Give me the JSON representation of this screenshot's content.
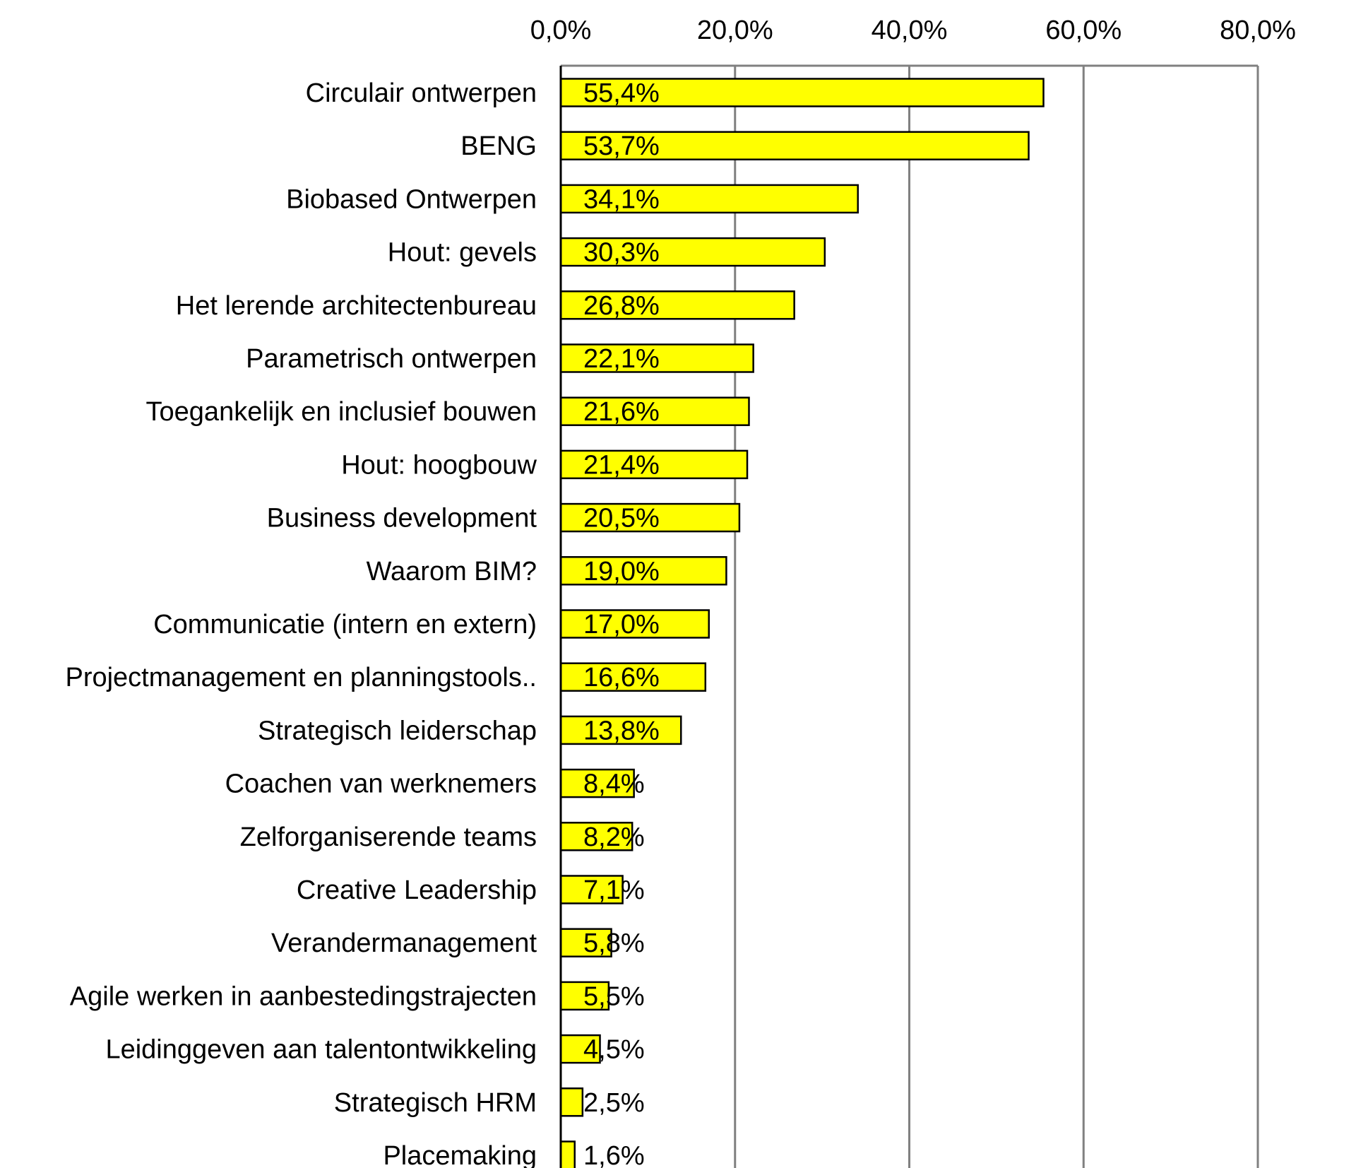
{
  "chart_data": {
    "type": "bar",
    "orientation": "horizontal",
    "title": "",
    "xlabel": "",
    "ylabel": "",
    "xlim": [
      0,
      80
    ],
    "x_ticks": [
      0,
      20,
      40,
      60,
      80
    ],
    "x_tick_labels": [
      "0,0%",
      "20,0%",
      "40,0%",
      "60,0%",
      "80,0%"
    ],
    "x_axis_position": "top",
    "grid": true,
    "legend": "none",
    "bar_color": "#FFFF00",
    "bar_edge_color": "#000000",
    "categories": [
      "Circulair ontwerpen",
      "BENG",
      "Biobased Ontwerpen",
      "Hout: gevels",
      "Het lerende architectenbureau",
      "Parametrisch ontwerpen",
      "Toegankelijk en inclusief bouwen",
      "Hout: hoogbouw",
      "Business development",
      "Waarom BIM?",
      "Communicatie (intern en extern)",
      "Projectmanagement en planningstools..",
      "Strategisch leiderschap",
      "Coachen van werknemers",
      "Zelforganiserende teams",
      "Creative Leadership",
      "Verandermanagement",
      "Agile werken in aanbestedingstrajecten",
      "Leidinggeven aan talentontwikkeling",
      "Strategisch HRM",
      "Placemaking"
    ],
    "values": [
      55.4,
      53.7,
      34.1,
      30.3,
      26.8,
      22.1,
      21.6,
      21.4,
      20.5,
      19.0,
      17.0,
      16.6,
      13.8,
      8.4,
      8.2,
      7.1,
      5.8,
      5.5,
      4.5,
      2.5,
      1.6
    ],
    "data_labels": [
      "55,4%",
      "53,7%",
      "34,1%",
      "30,3%",
      "26,8%",
      "22,1%",
      "21,6%",
      "21,4%",
      "20,5%",
      "19,0%",
      "17,0%",
      "16,6%",
      "13,8%",
      "8,4%",
      "8,2%",
      "7,1%",
      "5,8%",
      "5,5%",
      "4,5%",
      "2,5%",
      "1,6%"
    ]
  }
}
